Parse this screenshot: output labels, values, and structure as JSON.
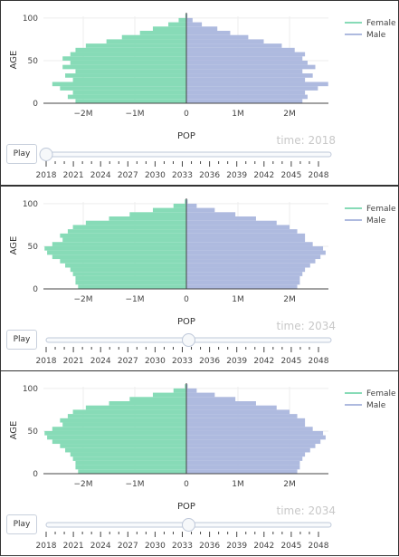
{
  "legend": {
    "female": "Female",
    "male": "Male"
  },
  "axis": {
    "y_title": "AGE",
    "x_title": "POP"
  },
  "controls": {
    "play_label": "Play"
  },
  "slider": {
    "years": [
      "2018",
      "2021",
      "2024",
      "2027",
      "2030",
      "2033",
      "2036",
      "2039",
      "2042",
      "2045",
      "2048"
    ]
  },
  "colors": {
    "female": "#87dbb7",
    "male": "#aebadf",
    "axis": "#444444",
    "grid": "#eeeeee"
  },
  "chart_data": [
    {
      "type": "bar",
      "orientation": "horizontal",
      "xlabel": "POP",
      "ylabel": "AGE",
      "xlim": [
        -2800000,
        2800000
      ],
      "ylim": [
        0,
        102
      ],
      "x_ticks": [
        "−2M",
        "−1M",
        "0",
        "1M",
        "2M"
      ],
      "y_ticks": [
        "0",
        "50",
        "100"
      ],
      "time_label": "time: 2018",
      "slider_position": 0.0,
      "ages": [
        0,
        5,
        10,
        15,
        20,
        25,
        30,
        35,
        40,
        45,
        50,
        55,
        60,
        65,
        70,
        75,
        80,
        85,
        90,
        95,
        100
      ],
      "series": [
        {
          "name": "Female",
          "values": [
            -2150000,
            -2300000,
            -2200000,
            -2450000,
            -2600000,
            -2200000,
            -2350000,
            -2150000,
            -2400000,
            -2250000,
            -2400000,
            -2250000,
            -2150000,
            -1950000,
            -1550000,
            -1250000,
            -900000,
            -650000,
            -350000,
            -150000,
            -20000
          ]
        },
        {
          "name": "Male",
          "values": [
            2250000,
            2350000,
            2300000,
            2550000,
            2750000,
            2300000,
            2450000,
            2250000,
            2500000,
            2350000,
            2250000,
            2300000,
            2100000,
            1850000,
            1500000,
            1200000,
            850000,
            600000,
            300000,
            120000,
            20000
          ]
        }
      ]
    },
    {
      "type": "bar",
      "orientation": "horizontal",
      "xlabel": "POP",
      "ylabel": "AGE",
      "xlim": [
        -2800000,
        2800000
      ],
      "ylim": [
        0,
        102
      ],
      "x_ticks": [
        "−2M",
        "−1M",
        "0",
        "1M",
        "2M"
      ],
      "y_ticks": [
        "0",
        "50",
        "100"
      ],
      "time_label": "time: 2034",
      "slider_position": 0.5,
      "ages": [
        0,
        5,
        10,
        15,
        20,
        25,
        30,
        35,
        40,
        45,
        50,
        55,
        60,
        65,
        70,
        75,
        80,
        85,
        90,
        95,
        100
      ],
      "series": [
        {
          "name": "Female",
          "values": [
            -2100000,
            -2150000,
            -2150000,
            -2200000,
            -2250000,
            -2350000,
            -2450000,
            -2600000,
            -2700000,
            -2750000,
            -2600000,
            -2400000,
            -2450000,
            -2300000,
            -2200000,
            -1950000,
            -1500000,
            -1100000,
            -650000,
            -250000,
            -30000
          ]
        },
        {
          "name": "Male",
          "values": [
            2150000,
            2200000,
            2200000,
            2250000,
            2300000,
            2400000,
            2500000,
            2600000,
            2700000,
            2650000,
            2450000,
            2300000,
            2300000,
            2150000,
            2000000,
            1750000,
            1350000,
            950000,
            550000,
            200000,
            25000
          ]
        }
      ]
    },
    {
      "type": "bar",
      "orientation": "horizontal",
      "xlabel": "POP",
      "ylabel": "AGE",
      "xlim": [
        -2800000,
        2800000
      ],
      "ylim": [
        0,
        102
      ],
      "x_ticks": [
        "−2M",
        "−1M",
        "0",
        "1M",
        "2M"
      ],
      "y_ticks": [
        "0",
        "50",
        "100"
      ],
      "time_label": "time: 2034",
      "slider_position": 0.5,
      "ages": [
        0,
        5,
        10,
        15,
        20,
        25,
        30,
        35,
        40,
        45,
        50,
        55,
        60,
        65,
        70,
        75,
        80,
        85,
        90,
        95,
        100
      ],
      "series": [
        {
          "name": "Female",
          "values": [
            -2100000,
            -2150000,
            -2150000,
            -2200000,
            -2250000,
            -2350000,
            -2450000,
            -2600000,
            -2700000,
            -2750000,
            -2600000,
            -2400000,
            -2450000,
            -2300000,
            -2200000,
            -1950000,
            -1500000,
            -1100000,
            -650000,
            -250000,
            -30000
          ]
        },
        {
          "name": "Male",
          "values": [
            2150000,
            2200000,
            2200000,
            2250000,
            2300000,
            2400000,
            2500000,
            2600000,
            2700000,
            2650000,
            2450000,
            2300000,
            2300000,
            2150000,
            2000000,
            1750000,
            1350000,
            950000,
            550000,
            200000,
            25000
          ]
        }
      ]
    }
  ]
}
